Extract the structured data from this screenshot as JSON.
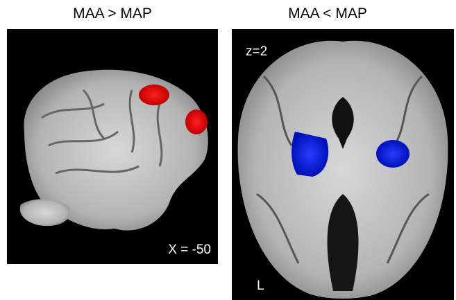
{
  "panels": [
    {
      "title": "MAA > MAP",
      "slice_label": "X = -50"
    },
    {
      "title": "MAA < MAP",
      "slice_label": "z=2",
      "side_label": "L"
    }
  ]
}
